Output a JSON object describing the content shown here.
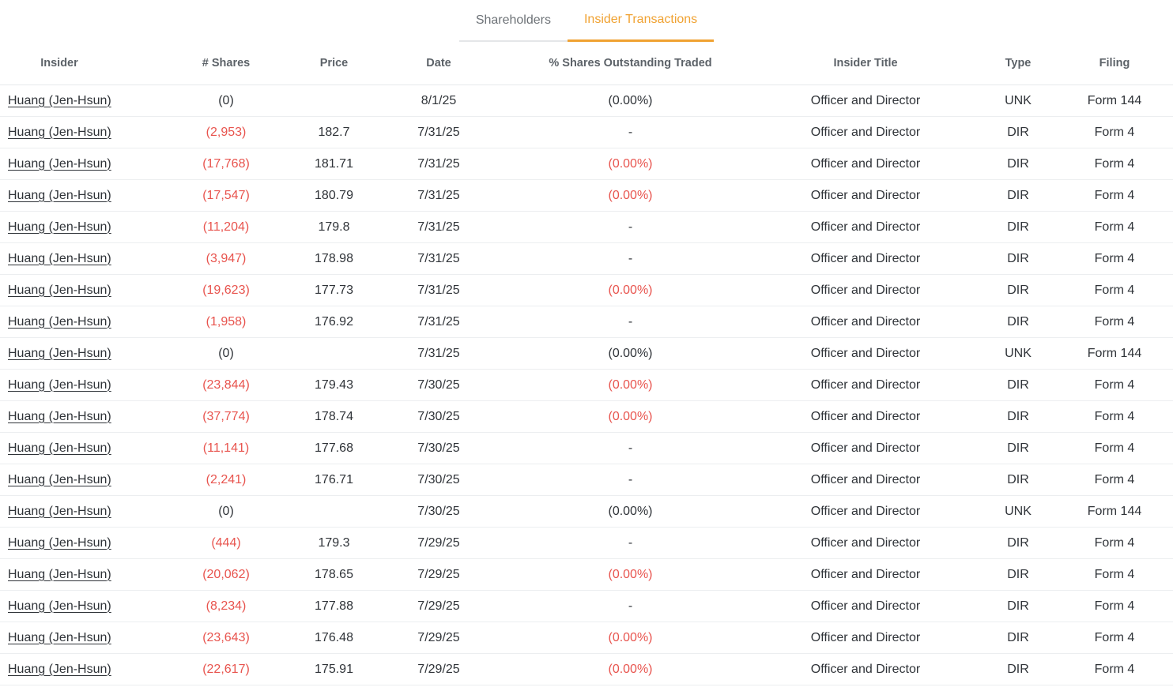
{
  "tabs": [
    {
      "id": "shareholders",
      "label": "Shareholders",
      "active": false
    },
    {
      "id": "insider-transactions",
      "label": "Insider Transactions",
      "active": true
    }
  ],
  "colors": {
    "accent": "#F0A232",
    "negative": "#E8544E",
    "text": "#2F3338",
    "header_text": "#5C6268",
    "row_border": "#ECEEF0"
  },
  "table": {
    "columns": [
      "Insider",
      "# Shares",
      "Price",
      "Date",
      "% Shares Outstanding Traded",
      "Insider Title",
      "Type",
      "Filing"
    ],
    "rows": [
      {
        "insider": "Huang (Jen-Hsun)",
        "shares": "(0)",
        "shares_negative": false,
        "price": "",
        "date": "8/1/25",
        "pct": "(0.00%)",
        "pct_negative": false,
        "title": "Officer and Director",
        "type": "UNK",
        "filing": "Form 144"
      },
      {
        "insider": "Huang (Jen-Hsun)",
        "shares": "(2,953)",
        "shares_negative": true,
        "price": "182.7",
        "date": "7/31/25",
        "pct": "-",
        "pct_negative": false,
        "title": "Officer and Director",
        "type": "DIR",
        "filing": "Form 4"
      },
      {
        "insider": "Huang (Jen-Hsun)",
        "shares": "(17,768)",
        "shares_negative": true,
        "price": "181.71",
        "date": "7/31/25",
        "pct": "(0.00%)",
        "pct_negative": true,
        "title": "Officer and Director",
        "type": "DIR",
        "filing": "Form 4"
      },
      {
        "insider": "Huang (Jen-Hsun)",
        "shares": "(17,547)",
        "shares_negative": true,
        "price": "180.79",
        "date": "7/31/25",
        "pct": "(0.00%)",
        "pct_negative": true,
        "title": "Officer and Director",
        "type": "DIR",
        "filing": "Form 4"
      },
      {
        "insider": "Huang (Jen-Hsun)",
        "shares": "(11,204)",
        "shares_negative": true,
        "price": "179.8",
        "date": "7/31/25",
        "pct": "-",
        "pct_negative": false,
        "title": "Officer and Director",
        "type": "DIR",
        "filing": "Form 4"
      },
      {
        "insider": "Huang (Jen-Hsun)",
        "shares": "(3,947)",
        "shares_negative": true,
        "price": "178.98",
        "date": "7/31/25",
        "pct": "-",
        "pct_negative": false,
        "title": "Officer and Director",
        "type": "DIR",
        "filing": "Form 4"
      },
      {
        "insider": "Huang (Jen-Hsun)",
        "shares": "(19,623)",
        "shares_negative": true,
        "price": "177.73",
        "date": "7/31/25",
        "pct": "(0.00%)",
        "pct_negative": true,
        "title": "Officer and Director",
        "type": "DIR",
        "filing": "Form 4"
      },
      {
        "insider": "Huang (Jen-Hsun)",
        "shares": "(1,958)",
        "shares_negative": true,
        "price": "176.92",
        "date": "7/31/25",
        "pct": "-",
        "pct_negative": false,
        "title": "Officer and Director",
        "type": "DIR",
        "filing": "Form 4"
      },
      {
        "insider": "Huang (Jen-Hsun)",
        "shares": "(0)",
        "shares_negative": false,
        "price": "",
        "date": "7/31/25",
        "pct": "(0.00%)",
        "pct_negative": false,
        "title": "Officer and Director",
        "type": "UNK",
        "filing": "Form 144"
      },
      {
        "insider": "Huang (Jen-Hsun)",
        "shares": "(23,844)",
        "shares_negative": true,
        "price": "179.43",
        "date": "7/30/25",
        "pct": "(0.00%)",
        "pct_negative": true,
        "title": "Officer and Director",
        "type": "DIR",
        "filing": "Form 4"
      },
      {
        "insider": "Huang (Jen-Hsun)",
        "shares": "(37,774)",
        "shares_negative": true,
        "price": "178.74",
        "date": "7/30/25",
        "pct": "(0.00%)",
        "pct_negative": true,
        "title": "Officer and Director",
        "type": "DIR",
        "filing": "Form 4"
      },
      {
        "insider": "Huang (Jen-Hsun)",
        "shares": "(11,141)",
        "shares_negative": true,
        "price": "177.68",
        "date": "7/30/25",
        "pct": "-",
        "pct_negative": false,
        "title": "Officer and Director",
        "type": "DIR",
        "filing": "Form 4"
      },
      {
        "insider": "Huang (Jen-Hsun)",
        "shares": "(2,241)",
        "shares_negative": true,
        "price": "176.71",
        "date": "7/30/25",
        "pct": "-",
        "pct_negative": false,
        "title": "Officer and Director",
        "type": "DIR",
        "filing": "Form 4"
      },
      {
        "insider": "Huang (Jen-Hsun)",
        "shares": "(0)",
        "shares_negative": false,
        "price": "",
        "date": "7/30/25",
        "pct": "(0.00%)",
        "pct_negative": false,
        "title": "Officer and Director",
        "type": "UNK",
        "filing": "Form 144"
      },
      {
        "insider": "Huang (Jen-Hsun)",
        "shares": "(444)",
        "shares_negative": true,
        "price": "179.3",
        "date": "7/29/25",
        "pct": "-",
        "pct_negative": false,
        "title": "Officer and Director",
        "type": "DIR",
        "filing": "Form 4"
      },
      {
        "insider": "Huang (Jen-Hsun)",
        "shares": "(20,062)",
        "shares_negative": true,
        "price": "178.65",
        "date": "7/29/25",
        "pct": "(0.00%)",
        "pct_negative": true,
        "title": "Officer and Director",
        "type": "DIR",
        "filing": "Form 4"
      },
      {
        "insider": "Huang (Jen-Hsun)",
        "shares": "(8,234)",
        "shares_negative": true,
        "price": "177.88",
        "date": "7/29/25",
        "pct": "-",
        "pct_negative": false,
        "title": "Officer and Director",
        "type": "DIR",
        "filing": "Form 4"
      },
      {
        "insider": "Huang (Jen-Hsun)",
        "shares": "(23,643)",
        "shares_negative": true,
        "price": "176.48",
        "date": "7/29/25",
        "pct": "(0.00%)",
        "pct_negative": true,
        "title": "Officer and Director",
        "type": "DIR",
        "filing": "Form 4"
      },
      {
        "insider": "Huang (Jen-Hsun)",
        "shares": "(22,617)",
        "shares_negative": true,
        "price": "175.91",
        "date": "7/29/25",
        "pct": "(0.00%)",
        "pct_negative": true,
        "title": "Officer and Director",
        "type": "DIR",
        "filing": "Form 4"
      }
    ]
  }
}
